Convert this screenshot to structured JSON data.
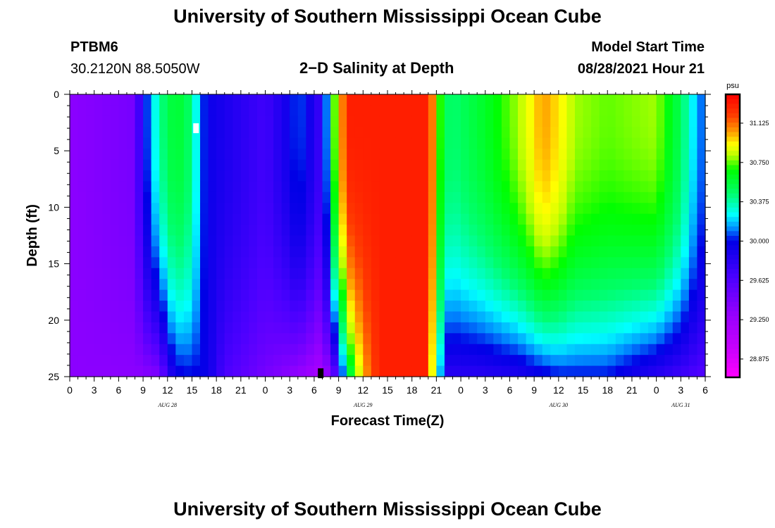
{
  "header": {
    "title": "University of Southern Mississippi Ocean Cube",
    "station": "PTBM6",
    "coords": "30.2120N  88.5050W",
    "subtitle": "2−D Salinity at Depth",
    "model_start_label": "Model Start Time",
    "model_start_value": "08/28/2021 Hour 21"
  },
  "footer": {
    "title": "University of Southern Mississippi Ocean Cube"
  },
  "chart_data": {
    "type": "heatmap",
    "title": "2-D Salinity at Depth",
    "xlabel": "Forecast Time(Z)",
    "ylabel": "Depth (ft)",
    "units": "psu",
    "x_range_hours": [
      0,
      78
    ],
    "y_range_ft": [
      0,
      25
    ],
    "y_ticks": [
      0,
      5,
      10,
      15,
      20,
      25
    ],
    "x_tick_labels": [
      "0",
      "3",
      "6",
      "9",
      "12",
      "15",
      "18",
      "21",
      "0",
      "3",
      "6",
      "9",
      "12",
      "15",
      "18",
      "21",
      "0",
      "3",
      "6",
      "9",
      "12",
      "15",
      "18",
      "21",
      "0",
      "3",
      "6"
    ],
    "date_labels": [
      {
        "hour": 12,
        "label": "AUG 28"
      },
      {
        "hour": 36,
        "label": "AUG 29"
      },
      {
        "hour": 60,
        "label": "AUG 30"
      },
      {
        "hour": 75,
        "label": "AUG 31"
      }
    ],
    "colorbar_levels": [
      31.125,
      30.75,
      30.375,
      30.0,
      29.625,
      29.25,
      28.875
    ],
    "colorbar_tick_labels": [
      "31.125",
      "30.750",
      "30.375",
      "30.000",
      "29.625",
      "29.250",
      "28.875"
    ],
    "colorbar_range": [
      28.7,
      31.4
    ],
    "surface_profile": [
      [
        0,
        29.35
      ],
      [
        8,
        29.45
      ],
      [
        9,
        29.95
      ],
      [
        10,
        30.15
      ],
      [
        11,
        30.4
      ],
      [
        13,
        30.6
      ],
      [
        15,
        30.45
      ],
      [
        16,
        30.1
      ],
      [
        17,
        29.95
      ],
      [
        24,
        29.7
      ],
      [
        27,
        29.95
      ],
      [
        28,
        30.1
      ],
      [
        30,
        29.85
      ],
      [
        31,
        29.7
      ],
      [
        31.5,
        30.1
      ],
      [
        32,
        30.6
      ],
      [
        33,
        30.9
      ],
      [
        34,
        31.3
      ],
      [
        44,
        31.3
      ],
      [
        45,
        30.9
      ],
      [
        46,
        30.5
      ],
      [
        47,
        30.45
      ],
      [
        51,
        30.6
      ],
      [
        55,
        30.8
      ],
      [
        57,
        30.95
      ],
      [
        58,
        31.05
      ],
      [
        60,
        30.95
      ],
      [
        62,
        30.8
      ],
      [
        66,
        30.75
      ],
      [
        72,
        30.8
      ],
      [
        75,
        30.5
      ],
      [
        77,
        30.15
      ],
      [
        78,
        30.05
      ]
    ],
    "bottom_profile": [
      [
        0,
        29.35
      ],
      [
        9,
        29.35
      ],
      [
        11,
        29.4
      ],
      [
        12,
        29.75
      ],
      [
        13,
        29.95
      ],
      [
        15,
        30.0
      ],
      [
        17,
        29.95
      ],
      [
        19,
        29.65
      ],
      [
        24,
        29.45
      ],
      [
        28,
        29.3
      ],
      [
        31,
        29.15
      ],
      [
        33,
        29.7
      ],
      [
        34,
        30.4
      ],
      [
        36,
        31.0
      ],
      [
        38,
        31.3
      ],
      [
        44,
        31.3
      ],
      [
        45,
        30.5
      ],
      [
        46,
        29.8
      ],
      [
        50,
        29.8
      ],
      [
        55,
        29.85
      ],
      [
        60,
        30.0
      ],
      [
        66,
        30.0
      ],
      [
        72,
        29.8
      ],
      [
        78,
        29.6
      ]
    ],
    "markers": [
      {
        "hour": 15.5,
        "depth_ft": 3,
        "color": "#ffffff"
      },
      {
        "hour": 30.8,
        "depth_ft": 24.7,
        "color": "#000000"
      }
    ]
  }
}
